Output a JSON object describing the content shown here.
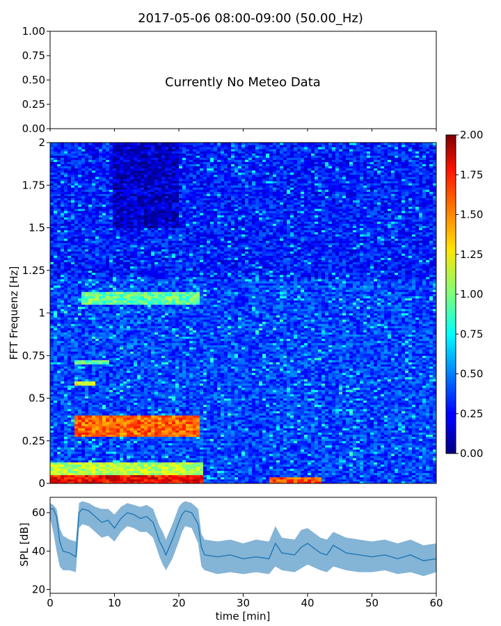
{
  "figure": {
    "title": "2017-05-06 08:00-09:00 (50.00_Hz)"
  },
  "colors": {
    "spl_line": "#1f77b4",
    "axis": "#000000",
    "background": "#ffffff"
  },
  "chart_data": [
    {
      "type": "line",
      "panel": "meteo",
      "message": "Currently No Meteo Data",
      "ylim": [
        0,
        1
      ],
      "yticks": [
        "0.00",
        "0.25",
        "0.50",
        "0.75",
        "1.00"
      ],
      "xlim": [
        0,
        60
      ],
      "series": []
    },
    {
      "type": "heatmap",
      "panel": "spectrogram",
      "ylabel": "FFT Frequenz [Hz]",
      "xlim": [
        0,
        60
      ],
      "ylim": [
        0,
        2
      ],
      "yticks": [
        "0",
        "0.25",
        "0.5",
        "0.75",
        "1",
        "1.25",
        "1.5",
        "1.75",
        "2"
      ],
      "colormap": "jet",
      "colorbar": {
        "range": [
          0,
          2
        ],
        "ticks": [
          "0.00",
          "0.25",
          "0.50",
          "0.75",
          "1.00",
          "1.25",
          "1.50",
          "1.75",
          "2.00"
        ]
      },
      "features": [
        {
          "t": [
            0,
            24
          ],
          "f": [
            0.0,
            0.05
          ],
          "level": 1.75
        },
        {
          "t": [
            0,
            24
          ],
          "f": [
            0.05,
            0.12
          ],
          "level": 1.1
        },
        {
          "t": [
            4,
            23
          ],
          "f": [
            0.28,
            0.4
          ],
          "level": 1.55
        },
        {
          "t": [
            5,
            23
          ],
          "f": [
            1.05,
            1.12
          ],
          "level": 0.95
        },
        {
          "t": [
            4,
            9
          ],
          "f": [
            0.7,
            0.73
          ],
          "level": 0.9
        },
        {
          "t": [
            4,
            7
          ],
          "f": [
            0.58,
            0.6
          ],
          "level": 1.2
        },
        {
          "t": [
            34,
            42
          ],
          "f": [
            0.0,
            0.04
          ],
          "level": 1.6
        },
        {
          "t": [
            10,
            20
          ],
          "f": [
            1.5,
            2.0
          ],
          "level": 0.15
        }
      ]
    },
    {
      "type": "line",
      "panel": "spl",
      "xlabel": "time [min]",
      "ylabel": "SPL [dB]",
      "xlim": [
        0,
        60
      ],
      "ylim": [
        18,
        68
      ],
      "xticks": [
        "0",
        "10",
        "20",
        "30",
        "40",
        "50",
        "60"
      ],
      "yticks": [
        "20",
        "40",
        "60"
      ],
      "series": [
        {
          "x": [
            0,
            0.5,
            1,
            1.5,
            2,
            3,
            4,
            4.5,
            5,
            6,
            7,
            8,
            9,
            10,
            11,
            12,
            13,
            14,
            15,
            16,
            17,
            17.5,
            18,
            19,
            20,
            20.5,
            21,
            22,
            23,
            23.5,
            24,
            26,
            28,
            30,
            32,
            34,
            35,
            36,
            38,
            39,
            40,
            42,
            43,
            44,
            46,
            48,
            50,
            52,
            54,
            56,
            58,
            60
          ],
          "y": [
            62,
            62,
            58,
            45,
            40,
            39,
            37,
            60,
            62,
            61,
            58,
            55,
            56,
            52,
            57,
            60,
            59,
            57,
            58,
            55,
            45,
            42,
            38,
            46,
            55,
            59,
            61,
            60,
            54,
            42,
            38,
            37,
            38,
            36,
            37,
            36,
            44,
            39,
            38,
            42,
            44,
            39,
            38,
            43,
            39,
            38,
            37,
            38,
            36,
            38,
            35,
            36
          ],
          "min": [
            57,
            50,
            40,
            32,
            30,
            30,
            29,
            52,
            54,
            53,
            50,
            47,
            48,
            45,
            50,
            53,
            52,
            50,
            50,
            47,
            37,
            33,
            30,
            36,
            45,
            50,
            53,
            52,
            44,
            32,
            30,
            28,
            29,
            28,
            29,
            28,
            32,
            30,
            29,
            31,
            33,
            30,
            29,
            32,
            30,
            29,
            29,
            30,
            28,
            29,
            27,
            29
          ],
          "max": [
            65,
            64,
            62,
            52,
            48,
            46,
            45,
            65,
            66,
            65,
            63,
            62,
            62,
            59,
            63,
            65,
            64,
            63,
            64,
            62,
            53,
            50,
            46,
            54,
            63,
            65,
            66,
            65,
            62,
            49,
            46,
            45,
            46,
            44,
            46,
            45,
            53,
            47,
            46,
            51,
            52,
            47,
            46,
            50,
            47,
            46,
            45,
            46,
            44,
            46,
            43,
            44
          ]
        }
      ]
    }
  ]
}
